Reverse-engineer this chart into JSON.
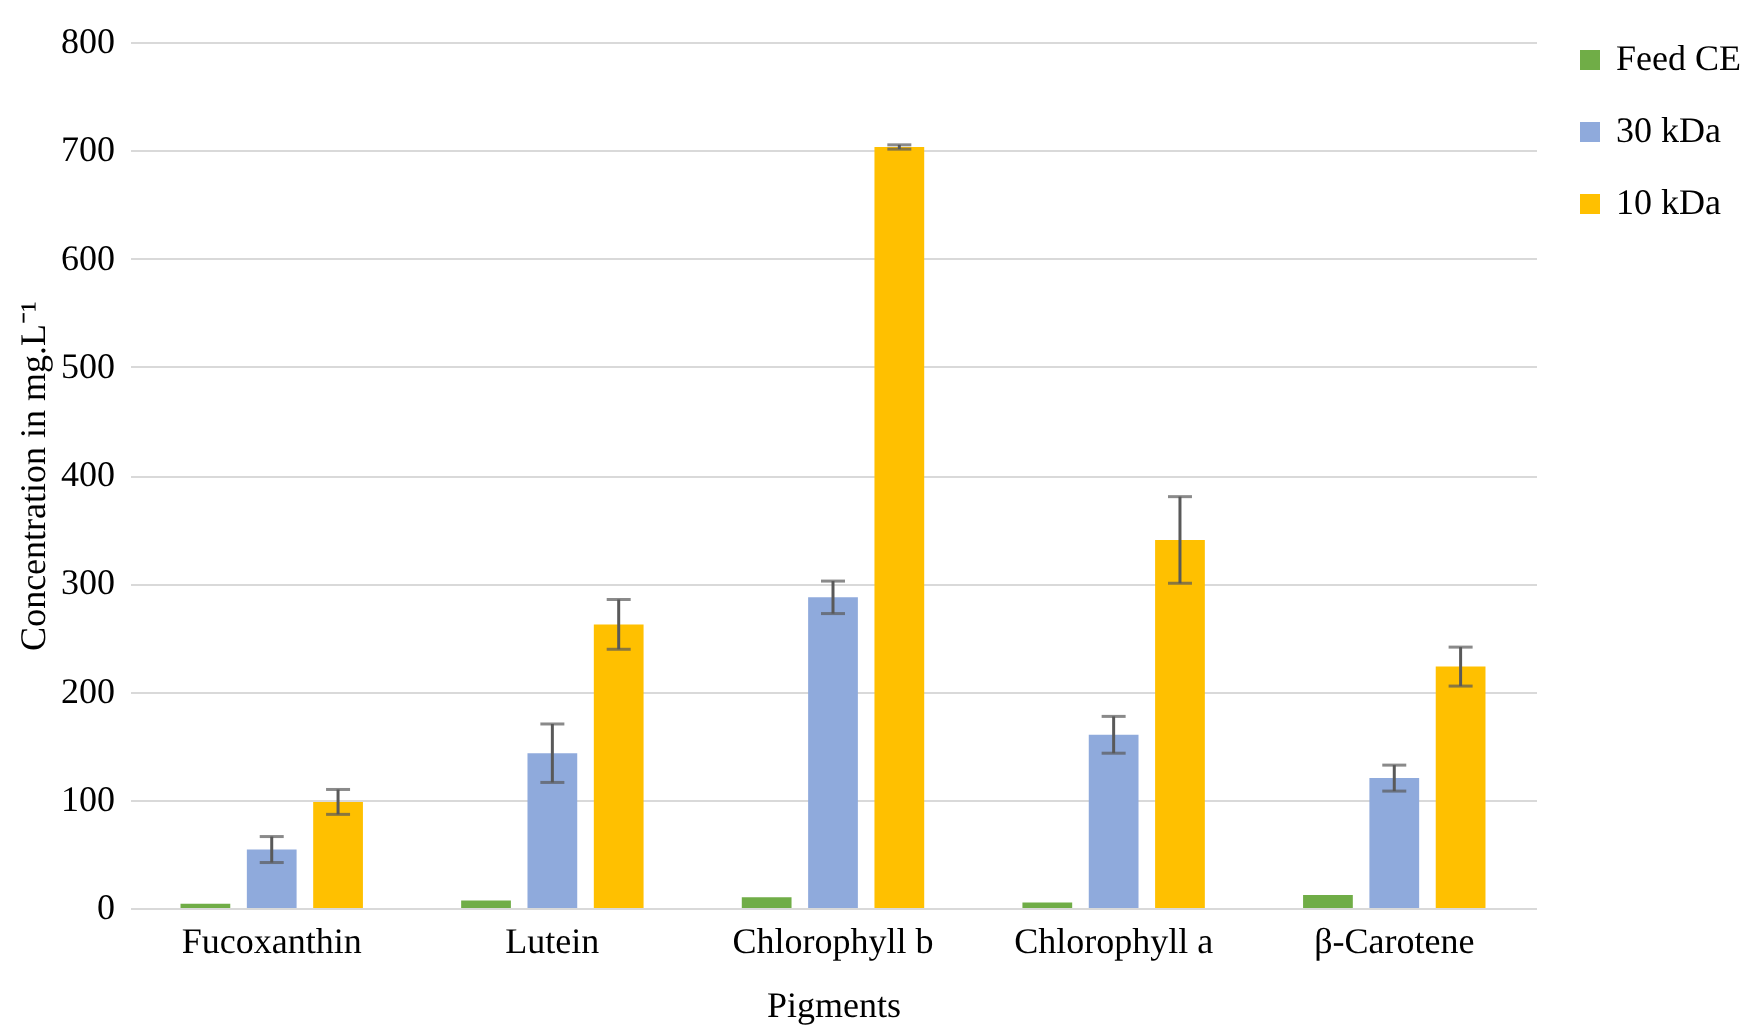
{
  "chart_data": {
    "type": "bar",
    "xlabel": "Pigments",
    "ylabel": "Concentration in mg.L⁻¹",
    "categories": [
      "Fucoxanthin",
      "Lutein",
      "Chlorophyll b",
      "Chlorophyll a",
      "β-Carotene"
    ],
    "series": [
      {
        "name": "Feed CE",
        "color": "#70ad47",
        "values": [
          4,
          7,
          10,
          5,
          12
        ]
      },
      {
        "name": "30 kDa",
        "color": "#8faadc",
        "values": [
          54,
          143,
          287,
          160,
          120
        ],
        "errors": [
          12,
          27,
          15,
          17,
          12
        ]
      },
      {
        "name": "10 kDa",
        "color": "#ffc000",
        "values": [
          98,
          262,
          703,
          340,
          223
        ],
        "errors": [
          11.5,
          23,
          2,
          40,
          18
        ]
      }
    ],
    "ylim": [
      0,
      800
    ],
    "yticks": [
      0,
      100,
      200,
      300,
      400,
      500,
      600,
      700,
      800
    ],
    "grid": "y",
    "legend": "right"
  }
}
